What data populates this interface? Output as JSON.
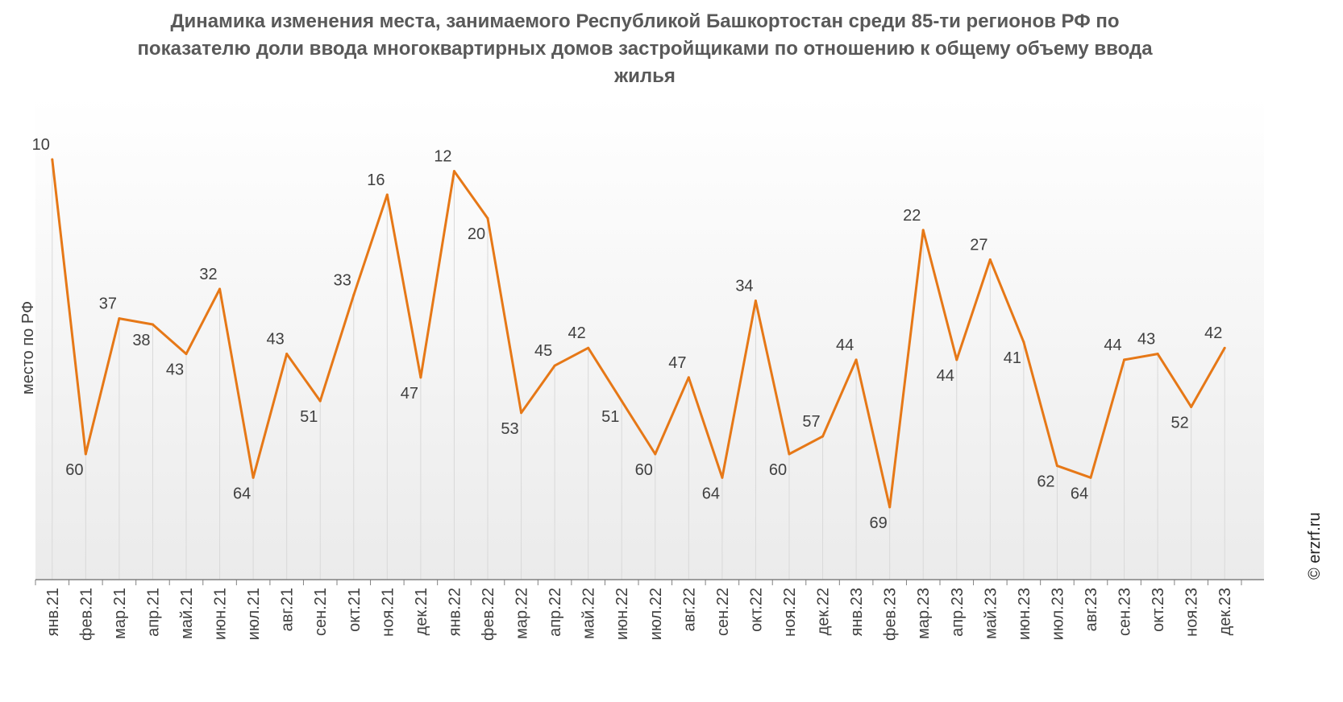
{
  "chart_data": {
    "type": "line",
    "title": "Динамика изменения места, занимаемого Республикой Башкортостан среди 85-ти регионов РФ по показателю доли ввода многоквартирных домов застройщиками по отношению к общему объему ввода жилья",
    "ylabel": "место по РФ",
    "xlabel": "",
    "y_inverted": true,
    "grid": false,
    "categories": [
      "янв.21",
      "фев.21",
      "мар.21",
      "апр.21",
      "май.21",
      "июн.21",
      "июл.21",
      "авг.21",
      "сен.21",
      "окт.21",
      "ноя.21",
      "дек.21",
      "янв.22",
      "фев.22",
      "мар.22",
      "апр.22",
      "май.22",
      "июн.22",
      "июл.22",
      "авг.22",
      "сен.22",
      "окт.22",
      "ноя.22",
      "дек.22",
      "янв.23",
      "фев.23",
      "мар.23",
      "апр.23",
      "май.23",
      "июн.23",
      "июл.23",
      "авг.23",
      "сен.23",
      "окт.23",
      "ноя.23",
      "дек.23"
    ],
    "series": [
      {
        "values": [
          10,
          60,
          37,
          38,
          43,
          32,
          64,
          43,
          51,
          33,
          16,
          47,
          12,
          20,
          53,
          45,
          42,
          51,
          60,
          47,
          64,
          34,
          60,
          57,
          44,
          69,
          22,
          44,
          27,
          41,
          62,
          64,
          44,
          43,
          52,
          42
        ]
      }
    ],
    "colors": {
      "line": "#E67817",
      "axis": "#808080",
      "background_top": "#ffffff",
      "background_bottom": "#ececec"
    }
  },
  "credit": "© erzrf.ru"
}
